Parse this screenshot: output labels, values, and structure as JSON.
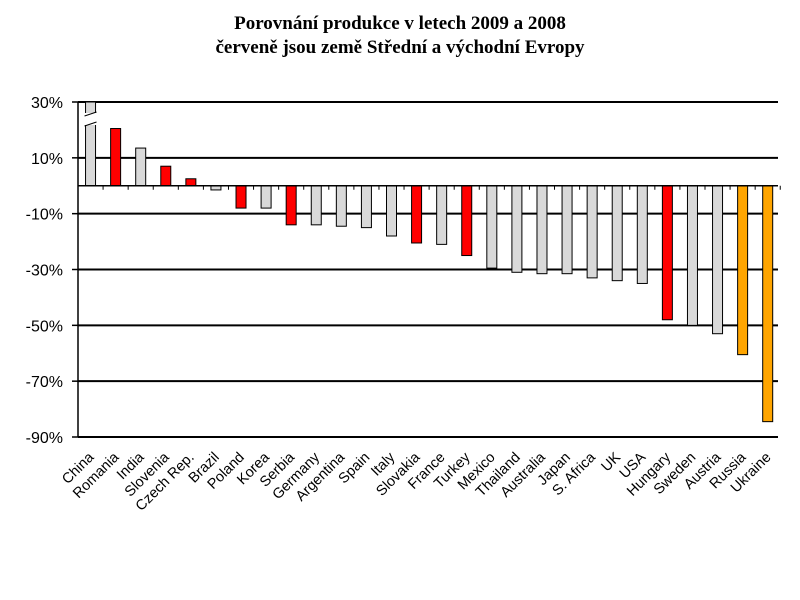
{
  "chart_data": {
    "type": "bar",
    "title": "Porovnání produkce v letech 2009 a 2008",
    "subtitle": "červeně jsou země Střední a východní Evropy",
    "xlabel": "",
    "ylabel": "",
    "ylim": [
      -90,
      30
    ],
    "y_ticks": [
      "30%",
      "10%",
      "-10%",
      "-30%",
      "-50%",
      "-70%",
      "-90%"
    ],
    "y_tick_values": [
      30,
      10,
      -10,
      -30,
      -50,
      -70,
      -90
    ],
    "grid": true,
    "legend": "none",
    "colors": {
      "grey": "#d9d9d9",
      "red": "#ff0000",
      "orange": "#ffa500"
    },
    "categories": [
      "China",
      "Romania",
      "India",
      "Slovenia",
      "Czech Rep.",
      "Brazil",
      "Poland",
      "Korea",
      "Serbia",
      "Germany",
      "Argentina",
      "Spain",
      "Italy",
      "Slovakia",
      "France",
      "Turkey",
      "Mexico",
      "Thailand",
      "Australia",
      "Japan",
      "S. Africa",
      "UK",
      "USA",
      "Hungary",
      "Sweden",
      "Austria",
      "Russia",
      "Ukraine"
    ],
    "values": [
      30,
      20.5,
      13.5,
      7,
      2.5,
      -1.5,
      -8,
      -8,
      -14,
      -14,
      -14.5,
      -15,
      -18,
      -20.5,
      -21,
      -25,
      -29.5,
      -31,
      -31.5,
      -31.5,
      -33,
      -34,
      -35,
      -48,
      -50,
      -53,
      -60.5,
      -84.5
    ],
    "bar_colors": [
      "grey",
      "red",
      "grey",
      "red",
      "red",
      "grey",
      "red",
      "grey",
      "red",
      "grey",
      "grey",
      "grey",
      "grey",
      "red",
      "grey",
      "red",
      "grey",
      "grey",
      "grey",
      "grey",
      "grey",
      "grey",
      "grey",
      "red",
      "grey",
      "grey",
      "orange",
      "orange"
    ],
    "annotations": [
      {
        "category": "China",
        "note": "bar truncated above axis (break marks)"
      }
    ]
  }
}
